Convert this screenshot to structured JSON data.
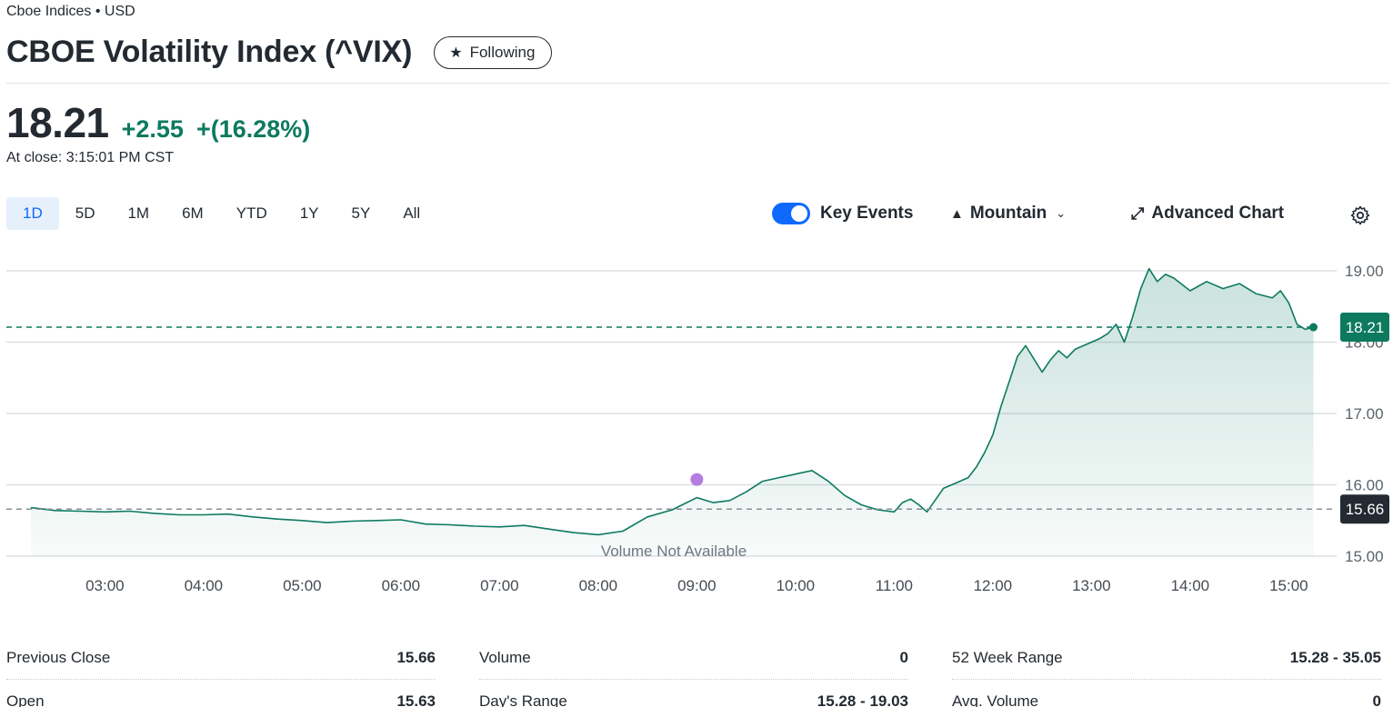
{
  "header": {
    "exchange": "Cboe Indices • USD",
    "title": "CBOE Volatility Index (^VIX)",
    "follow_label": "Following"
  },
  "quote": {
    "price": "18.21",
    "change": "+2.55",
    "change_pct": "+(16.28%)",
    "close_time": "At close: 3:15:01 PM CST"
  },
  "range_tabs": [
    {
      "label": "1D",
      "active": true
    },
    {
      "label": "5D"
    },
    {
      "label": "1M"
    },
    {
      "label": "6M"
    },
    {
      "label": "YTD"
    },
    {
      "label": "1Y"
    },
    {
      "label": "5Y"
    },
    {
      "label": "All"
    }
  ],
  "toolbar": {
    "key_events_label": "Key Events",
    "key_events_on": true,
    "chart_type_label": "Mountain",
    "advanced_chart_label": "Advanced Chart"
  },
  "colors": {
    "up": "#0d7a5f",
    "accent": "#0f69ff",
    "event_dot": "#b57de0"
  },
  "chart_data": {
    "type": "area",
    "ylim": [
      15.0,
      19.0
    ],
    "y_ticks": [
      "19.00",
      "18.00",
      "17.00",
      "16.00",
      "15.00"
    ],
    "x_ticks": [
      "03:00",
      "04:00",
      "05:00",
      "06:00",
      "07:00",
      "08:00",
      "09:00",
      "10:00",
      "11:00",
      "12:00",
      "13:00",
      "14:00",
      "15:00"
    ],
    "x_range": [
      "02:15",
      "15:15"
    ],
    "series": [
      {
        "x": [
          "02:15",
          "02:30",
          "02:45",
          "03:00",
          "03:15",
          "03:30",
          "03:45",
          "04:00",
          "04:15",
          "04:30",
          "04:45",
          "05:00",
          "05:15",
          "05:30",
          "05:45",
          "06:00",
          "06:15",
          "06:30",
          "06:45",
          "07:00",
          "07:15",
          "07:30",
          "07:45",
          "08:00",
          "08:15",
          "08:30",
          "08:45",
          "09:00",
          "09:10",
          "09:20",
          "09:30",
          "09:40",
          "09:50",
          "10:00",
          "10:10",
          "10:20",
          "10:30",
          "10:40",
          "10:50",
          "11:00",
          "11:05",
          "11:10",
          "11:15",
          "11:20",
          "11:30",
          "11:40",
          "11:45",
          "11:50",
          "11:55",
          "12:00",
          "12:05",
          "12:10",
          "12:15",
          "12:20",
          "12:30",
          "12:35",
          "12:40",
          "12:45",
          "12:50",
          "13:00",
          "13:05",
          "13:10",
          "13:15",
          "13:20",
          "13:25",
          "13:30",
          "13:35",
          "13:40",
          "13:45",
          "13:50",
          "14:00",
          "14:10",
          "14:20",
          "14:30",
          "14:40",
          "14:50",
          "14:55",
          "15:00",
          "15:05",
          "15:10",
          "15:15"
        ],
        "values": [
          15.68,
          15.64,
          15.63,
          15.62,
          15.63,
          15.6,
          15.58,
          15.58,
          15.59,
          15.55,
          15.52,
          15.5,
          15.47,
          15.49,
          15.5,
          15.51,
          15.45,
          15.44,
          15.42,
          15.41,
          15.43,
          15.38,
          15.33,
          15.3,
          15.35,
          15.55,
          15.65,
          15.82,
          15.75,
          15.78,
          15.9,
          16.05,
          16.1,
          16.15,
          16.2,
          16.05,
          15.85,
          15.72,
          15.65,
          15.62,
          15.75,
          15.8,
          15.72,
          15.62,
          15.95,
          16.05,
          16.1,
          16.25,
          16.45,
          16.7,
          17.1,
          17.45,
          17.8,
          17.95,
          17.58,
          17.75,
          17.88,
          17.78,
          17.9,
          18.0,
          18.05,
          18.12,
          18.25,
          18.0,
          18.35,
          18.75,
          19.03,
          18.85,
          18.95,
          18.9,
          18.72,
          18.85,
          18.75,
          18.82,
          18.68,
          18.62,
          18.72,
          18.55,
          18.25,
          18.18,
          18.21
        ]
      }
    ],
    "previous_close": "15.66",
    "last_price": "18.21",
    "event_marker_time": "09:00",
    "volume_note": "Volume Not Available"
  },
  "stats": {
    "col1": [
      {
        "label": "Previous Close",
        "value": "15.66"
      },
      {
        "label": "Open",
        "value": "15.63"
      }
    ],
    "col2": [
      {
        "label": "Volume",
        "value": "0"
      },
      {
        "label": "Day's Range",
        "value": "15.28 - 19.03"
      }
    ],
    "col3": [
      {
        "label": "52 Week Range",
        "value": "15.28 - 35.05"
      },
      {
        "label": "Avg. Volume",
        "value": "0"
      }
    ]
  }
}
